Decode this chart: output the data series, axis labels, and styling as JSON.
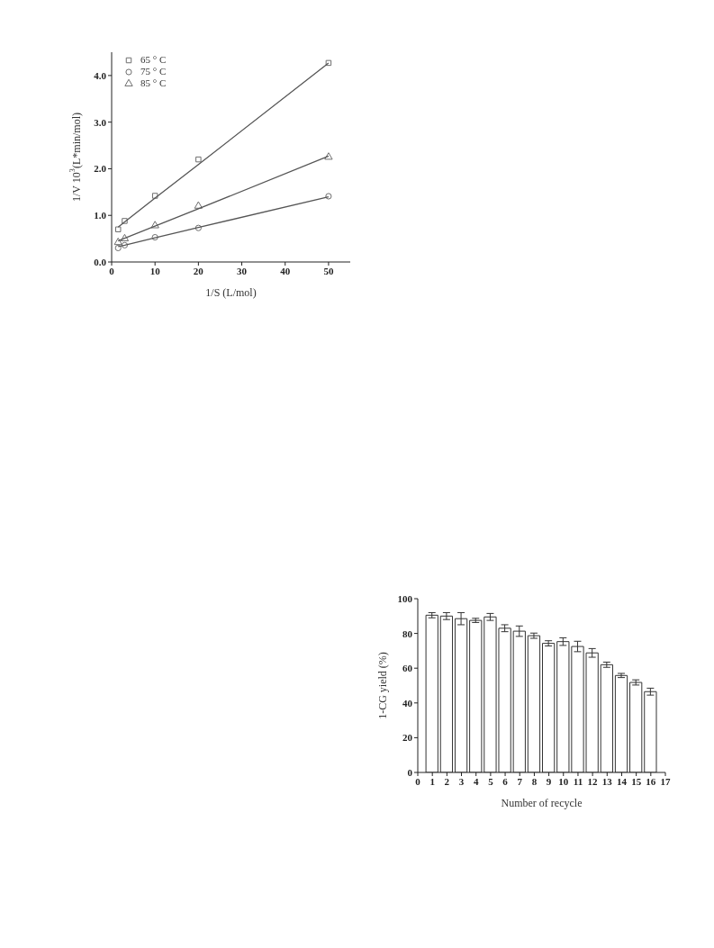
{
  "chart_data": [
    {
      "type": "scatter",
      "xlabel": "1/S (L/mol)",
      "ylabel": "1/V 10$^{3}$(L*min/mol)",
      "xlim": [
        0,
        55
      ],
      "xticks": [
        0,
        10,
        20,
        30,
        40,
        50
      ],
      "ylim": [
        0,
        4.5
      ],
      "yticks": [
        {
          "value": 0,
          "label": "0.0"
        },
        {
          "value": 1,
          "label": "1.0"
        },
        {
          "value": 2,
          "label": "2.0"
        },
        {
          "value": 3,
          "label": "3.0"
        },
        {
          "value": 4,
          "label": "4.0"
        }
      ],
      "x": [
        1.5,
        3,
        10,
        20,
        50
      ],
      "legend": "top left",
      "series": [
        {
          "name": "65 ° C",
          "color": "#6e6e6e",
          "marker": "square",
          "values": [
            0.7,
            0.88,
            1.42,
            2.2,
            4.27
          ]
        },
        {
          "name": "75 ° C",
          "color": "#6e6e6e",
          "marker": "circle",
          "values": [
            0.3,
            0.36,
            0.53,
            0.73,
            1.41
          ]
        },
        {
          "name": "85 ° C",
          "color": "#6e6e6e",
          "marker": "triangle",
          "values": [
            0.42,
            0.5,
            0.78,
            1.2,
            2.25
          ]
        },
        {
          "type": "line",
          "color": "#555555",
          "values": [
            0.75,
            0.86,
            1.37,
            2.09,
            4.27
          ]
        },
        {
          "type": "line",
          "color": "#555555",
          "values": [
            0.33,
            0.36,
            0.52,
            0.74,
            1.4
          ]
        },
        {
          "type": "line",
          "color": "#555555",
          "values": [
            0.45,
            0.51,
            0.77,
            1.14,
            2.27
          ]
        }
      ]
    },
    {
      "type": "bar",
      "xlabel": "Number of recycle",
      "ylabel": "1-CG yield (%)",
      "xlim": [
        0,
        17
      ],
      "xticks": [
        0,
        1,
        2,
        3,
        4,
        5,
        6,
        7,
        8,
        9,
        10,
        11,
        12,
        13,
        14,
        15,
        16,
        17
      ],
      "ylim": [
        0,
        100
      ],
      "yticks": [
        0,
        20,
        40,
        60,
        80,
        100
      ],
      "color": "#ffffff",
      "x": [
        1,
        2,
        3,
        4,
        5,
        6,
        7,
        8,
        9,
        10,
        11,
        12,
        13,
        14,
        15,
        16
      ],
      "values": [
        90.5,
        90,
        88.5,
        87.5,
        89.5,
        83,
        81.3,
        78.7,
        74.3,
        75.3,
        72.5,
        68.8,
        62,
        55.8,
        51.8,
        46.5
      ],
      "errors": [
        1.5,
        2,
        3.5,
        1.2,
        2,
        2,
        3,
        1.5,
        1.5,
        2.2,
        3,
        2.5,
        1.5,
        1.2,
        1.5,
        2
      ]
    }
  ]
}
